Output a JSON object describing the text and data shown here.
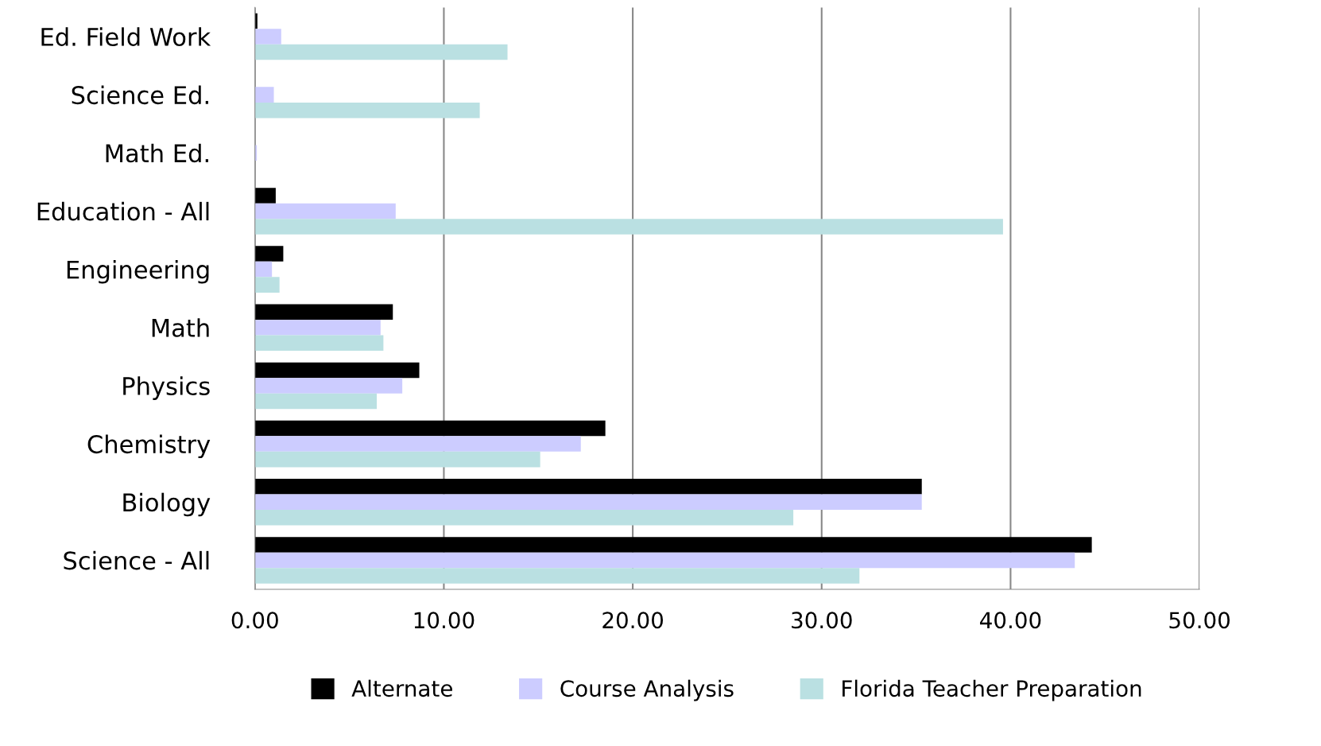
{
  "chart_data": {
    "type": "bar",
    "orientation": "horizontal",
    "categories": [
      "Ed. Field Work",
      "Science Ed.",
      "Math Ed.",
      "Education - All",
      "Engineering",
      "Math",
      "Physics",
      "Chemistry",
      "Biology",
      "Science - All"
    ],
    "series": [
      {
        "name": "Alternate",
        "color": "#000000",
        "values": [
          0.13,
          0,
          0,
          1.1,
          1.5,
          7.3,
          8.7,
          18.55,
          35.3,
          44.3
        ]
      },
      {
        "name": "Course Analysis",
        "color": "#ccccff",
        "values": [
          1.39,
          1.0,
          0.1,
          7.45,
          0.9,
          6.65,
          7.8,
          17.25,
          35.3,
          43.4
        ]
      },
      {
        "name": "Florida Teacher Preparation",
        "color": "#bae0e2",
        "values": [
          13.37,
          11.9,
          null,
          39.6,
          1.3,
          6.8,
          6.45,
          15.1,
          28.5,
          32.0
        ]
      }
    ],
    "xlim": [
      0,
      50
    ],
    "xticks": [
      {
        "value": 0,
        "label": "0.00"
      },
      {
        "value": 10,
        "label": "10.00"
      },
      {
        "value": 20,
        "label": "20.00"
      },
      {
        "value": 30,
        "label": "30.00"
      },
      {
        "value": 40,
        "label": "40.00"
      },
      {
        "value": 50,
        "label": "50.00"
      }
    ],
    "grid": "x",
    "legend": "bottom"
  }
}
